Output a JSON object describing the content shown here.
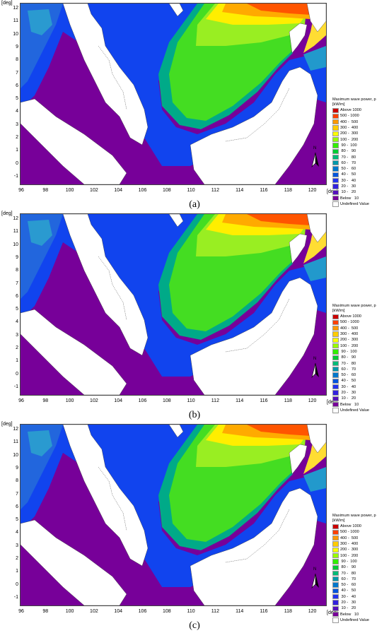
{
  "figure": {
    "panels": [
      {
        "caption": "(a)",
        "legend_title": "Maximum wave power, p\n[kW/m]"
      },
      {
        "caption": "(b)",
        "legend_title": "Maximum wave power, p\n[kW/m]"
      },
      {
        "caption": "(c)",
        "legend_title": "Maximum wave power, p\n[kW/m]"
      }
    ],
    "axis_unit_label": "[deg]",
    "x_ticks": [
      "96",
      "98",
      "100",
      "102",
      "104",
      "106",
      "108",
      "110",
      "112",
      "114",
      "116",
      "118",
      "120"
    ],
    "y_ticks": [
      "12",
      "11",
      "10",
      "9",
      "8",
      "7",
      "6",
      "5",
      "4",
      "3",
      "2",
      "1",
      "0",
      "-1"
    ],
    "north_label": "N",
    "legend_entries": [
      {
        "label": "Above 1000",
        "color": "#cc0000"
      },
      {
        "label": "500 - 1000",
        "color": "#ff4000"
      },
      {
        "label": "400 -  500",
        "color": "#ff9900"
      },
      {
        "label": "300 -  400",
        "color": "#ffcc00"
      },
      {
        "label": "200 -  300",
        "color": "#ffff00"
      },
      {
        "label": "100 -  200",
        "color": "#99ff00"
      },
      {
        "label": " 90 -  100",
        "color": "#33ee00"
      },
      {
        "label": " 80 -   90",
        "color": "#00cc33"
      },
      {
        "label": " 70 -   80",
        "color": "#00bb77"
      },
      {
        "label": " 60 -   70",
        "color": "#0099aa"
      },
      {
        "label": " 50 -   60",
        "color": "#0077cc"
      },
      {
        "label": " 40 -   50",
        "color": "#0055dd"
      },
      {
        "label": " 30 -   40",
        "color": "#2233ee"
      },
      {
        "label": " 20 -   30",
        "color": "#3322dd"
      },
      {
        "label": " 10 -   20",
        "color": "#5511bb"
      },
      {
        "label": "Below   10",
        "color": "#770099"
      },
      {
        "label": "Undefined Value",
        "color": "#ffffff"
      }
    ]
  }
}
